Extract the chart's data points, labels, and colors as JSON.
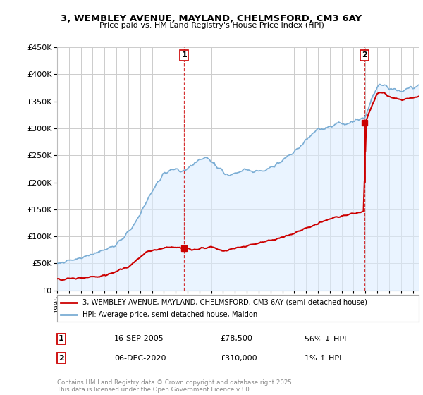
{
  "title1": "3, WEMBLEY AVENUE, MAYLAND, CHELMSFORD, CM3 6AY",
  "title2": "Price paid vs. HM Land Registry's House Price Index (HPI)",
  "legend_red": "3, WEMBLEY AVENUE, MAYLAND, CHELMSFORD, CM3 6AY (semi-detached house)",
  "legend_blue": "HPI: Average price, semi-detached house, Maldon",
  "label1": "1",
  "label2": "2",
  "sale1_date": 2005.71,
  "sale1_price": 78500,
  "sale1_text": "16-SEP-2005",
  "sale1_val": "£78,500",
  "sale1_hpi": "56% ↓ HPI",
  "sale2_date": 2020.92,
  "sale2_price": 310000,
  "sale2_text": "06-DEC-2020",
  "sale2_val": "£310,000",
  "sale2_hpi": "1% ↑ HPI",
  "footer": "Contains HM Land Registry data © Crown copyright and database right 2025.\nThis data is licensed under the Open Government Licence v3.0.",
  "ylim": [
    0,
    450000
  ],
  "red_color": "#cc0000",
  "blue_color": "#7aadd4",
  "blue_fill": "#ddeeff",
  "background_color": "#ffffff",
  "grid_color": "#cccccc"
}
